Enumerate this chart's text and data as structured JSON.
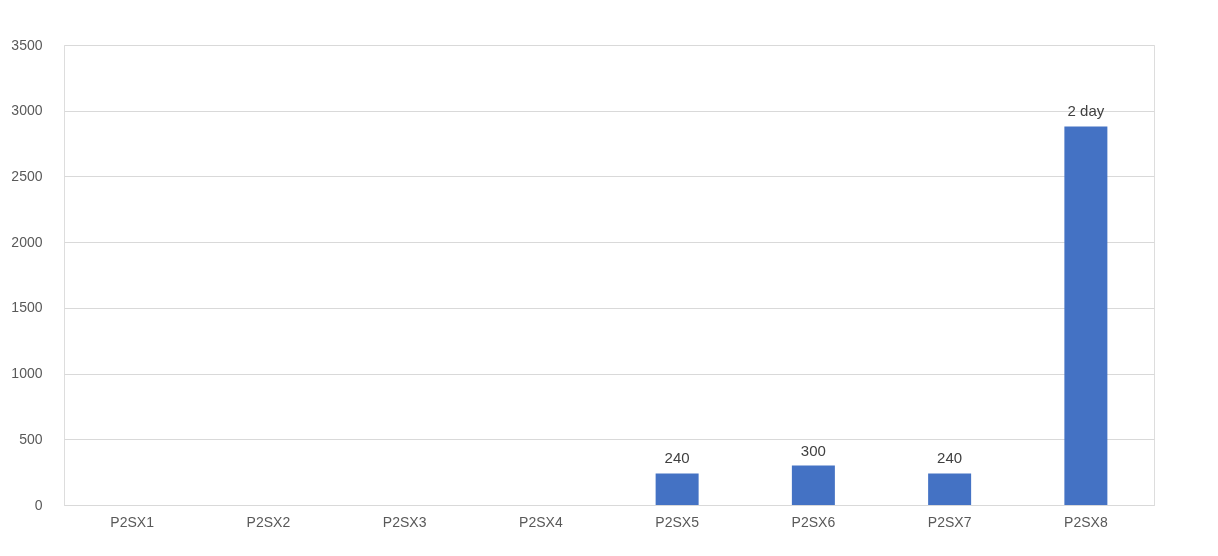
{
  "chart_data": {
    "type": "bar",
    "categories": [
      "P2SX1",
      "P2SX2",
      "P2SX3",
      "P2SX4",
      "P2SX5",
      "P2SX6",
      "P2SX7",
      "P2SX8"
    ],
    "values": [
      null,
      null,
      null,
      null,
      240,
      300,
      240,
      2880
    ],
    "value_labels": [
      null,
      null,
      null,
      null,
      "240",
      "300",
      "240",
      null
    ],
    "annotations": [
      {
        "text": "2 day",
        "x": "P2SX8",
        "y": 2880
      }
    ],
    "color": "#4472c4",
    "ylim": [
      0,
      3500
    ],
    "yticks": [
      0,
      500,
      1000,
      1500,
      2000,
      2500,
      3000,
      3500
    ],
    "grid": "y"
  }
}
